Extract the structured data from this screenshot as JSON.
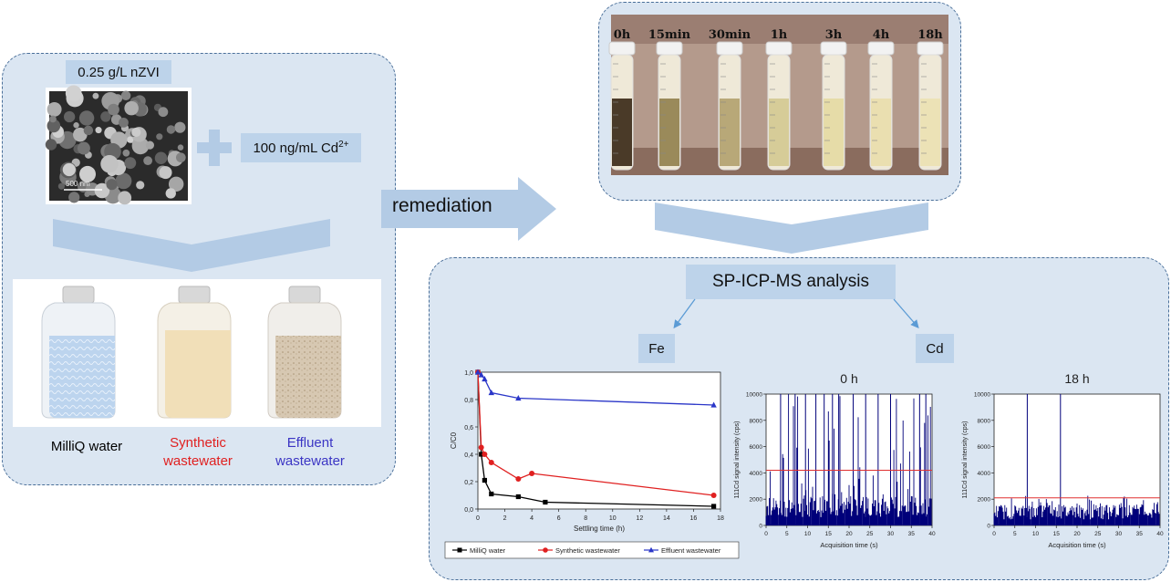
{
  "colors": {
    "arrow": "#b3cbe5",
    "panel": "#dbe6f2",
    "box": "#bdd3ea",
    "milliq": "#000000",
    "synthetic": "#e02020",
    "effluent": "#2a36c8",
    "cd_signal": "#00007a",
    "threshold": "#e03030"
  },
  "left": {
    "dose_label": "0.25 g/L nZVI",
    "cd_label_main": "100 ng/mL Cd",
    "cd_label_sup": "2+",
    "scale_bar": "500 nm",
    "bottles": [
      {
        "label": "MilliQ water",
        "color": "#000000"
      },
      {
        "label": "Synthetic wastewater",
        "color": "#e02020"
      },
      {
        "label": "Effluent wastewater",
        "color": "#3b35c4"
      }
    ]
  },
  "arrow_label": "remediation",
  "photo": {
    "times": [
      "0h",
      "15min",
      "30min",
      "1h",
      "3h",
      "4h",
      "18h"
    ]
  },
  "analysis": {
    "title": "SP-ICP-MS analysis",
    "fe": "Fe",
    "cd": "Cd"
  },
  "chart_data": [
    {
      "type": "line",
      "xlabel": "Settling time (h)",
      "ylabel": "C/C0",
      "xlim": [
        0,
        18
      ],
      "ylim": [
        0,
        1.0
      ],
      "xticks": [
        "0",
        "2",
        "4",
        "6",
        "8",
        "10",
        "12",
        "14",
        "16",
        "18"
      ],
      "yticks": [
        "0,0",
        "0,2",
        "0,4",
        "0,6",
        "0,8",
        "1,0"
      ],
      "series": [
        {
          "name": "MilliQ water",
          "marker": "square",
          "color": "#000000",
          "x": [
            0,
            0.25,
            0.5,
            1,
            3,
            5,
            17.5
          ],
          "y": [
            1.0,
            0.4,
            0.21,
            0.11,
            0.09,
            0.05,
            0.02
          ]
        },
        {
          "name": "Synthetic wastewater",
          "marker": "circle",
          "color": "#e02020",
          "x": [
            0,
            0.25,
            0.5,
            1,
            3,
            4,
            17.5
          ],
          "y": [
            1.0,
            0.45,
            0.4,
            0.34,
            0.22,
            0.26,
            0.1
          ]
        },
        {
          "name": "Effluent wastewater",
          "marker": "triangle",
          "color": "#2a36c8",
          "x": [
            0,
            0.25,
            0.5,
            1,
            3,
            17.5
          ],
          "y": [
            1.0,
            0.98,
            0.95,
            0.85,
            0.81,
            0.76
          ]
        }
      ]
    },
    {
      "type": "bar",
      "title": "0 h",
      "xlabel": "Acquisition time (s)",
      "ylabel": "111Cd signal intensity (cps)",
      "xlim": [
        0,
        40
      ],
      "ylim": [
        0,
        10000
      ],
      "xticks": [
        "0",
        "5",
        "10",
        "15",
        "20",
        "25",
        "30",
        "35",
        "40"
      ],
      "yticks": [
        "0",
        "2000",
        "4000",
        "6000",
        "8000",
        "10000"
      ],
      "threshold": 4200,
      "baseline": 1800
    },
    {
      "type": "bar",
      "title": "18 h",
      "xlabel": "Acquisition time (s)",
      "ylabel": "111Cd signal intensity (cps)",
      "xlim": [
        0,
        40
      ],
      "ylim": [
        0,
        10000
      ],
      "xticks": [
        "0",
        "5",
        "10",
        "15",
        "20",
        "25",
        "30",
        "35",
        "40"
      ],
      "yticks": [
        "0",
        "2000",
        "4000",
        "6000",
        "8000",
        "10000"
      ],
      "threshold": 2100,
      "baseline": 1300
    }
  ]
}
